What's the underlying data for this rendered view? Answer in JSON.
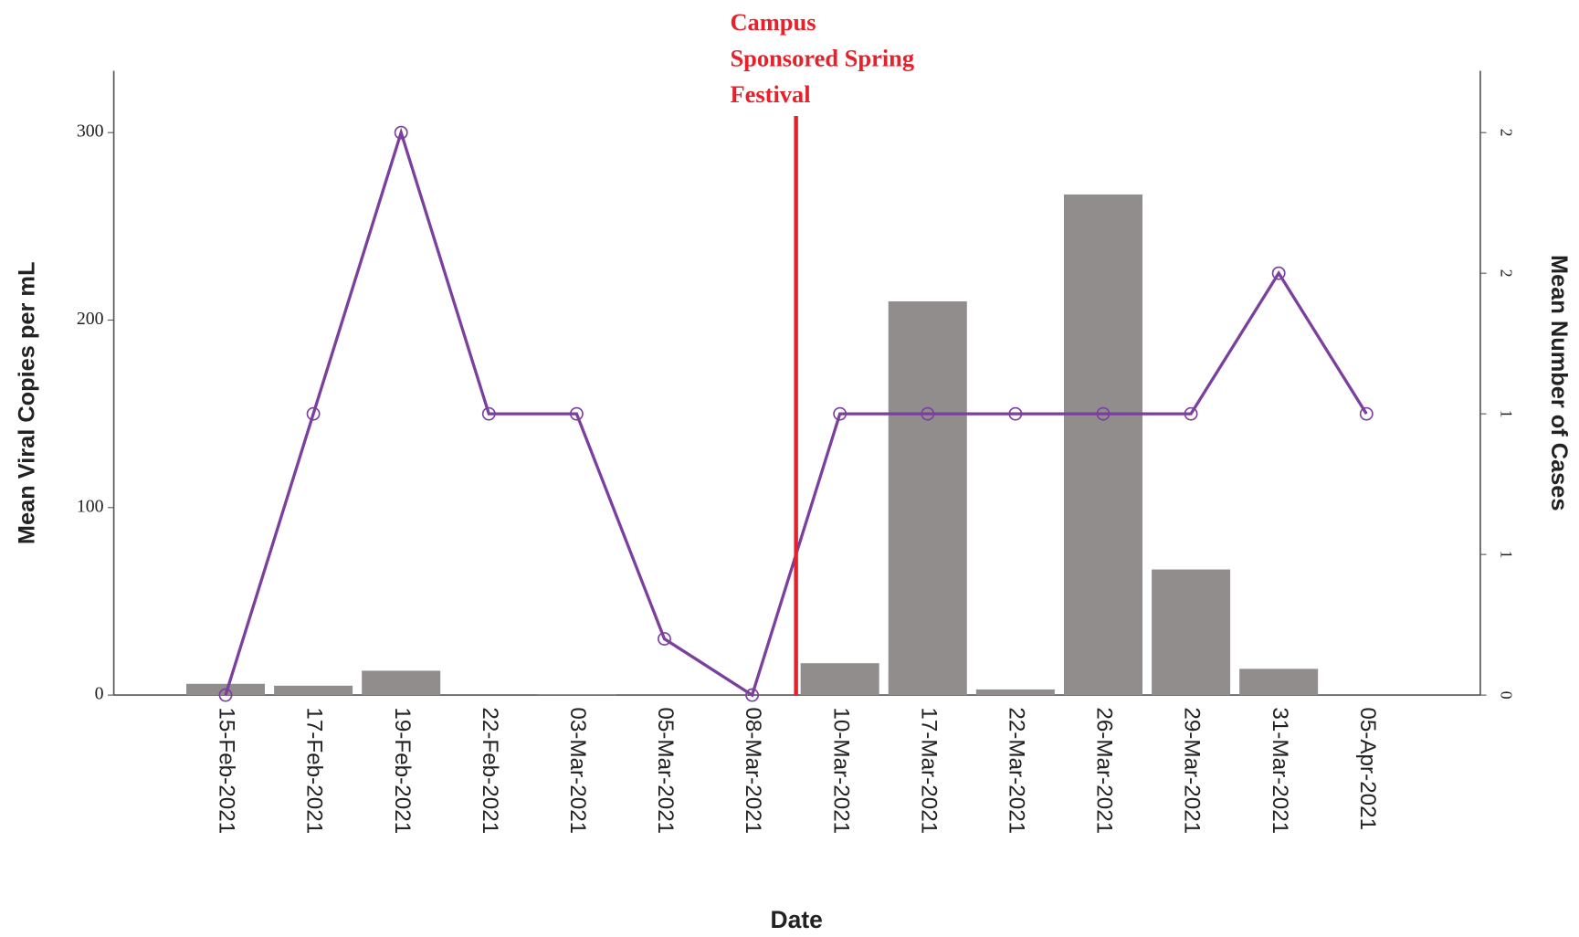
{
  "chart_data": {
    "type": "bar-line",
    "x_label": "Date",
    "y_label": "Mean Viral Copies per mL",
    "y2_label": "Mean Number of Cases",
    "annotation": {
      "lines": [
        "Campus",
        "Sponsored Spring",
        "Festival"
      ],
      "color": "#e8202a"
    },
    "categories": [
      "15-Feb-2021",
      "17-Feb-2021",
      "19-Feb-2021",
      "22-Feb-2021",
      "03-Mar-2021",
      "05-Mar-2021",
      "08-Mar-2021",
      "10-Mar-2021",
      "17-Mar-2021",
      "22-Mar-2021",
      "26-Mar-2021",
      "29-Mar-2021",
      "31-Mar-2021",
      "05-Apr-2021"
    ],
    "series": [
      {
        "type": "bar",
        "color": "#918d8c",
        "values": [
          6,
          5,
          13,
          0,
          0.5,
          0,
          0,
          17,
          210,
          3,
          267,
          67,
          14,
          0
        ]
      },
      {
        "type": "line",
        "axis": "y2",
        "color": "#7b3f9e",
        "values": [
          0,
          1,
          2,
          1,
          1,
          0.2,
          0,
          1,
          1,
          1,
          1,
          1,
          1.5,
          1
        ]
      }
    ],
    "ylim": [
      0,
      333
    ],
    "yticks": [
      0,
      100,
      200,
      300
    ],
    "y2lim": [
      0,
      2.22
    ],
    "y2ticks": [
      0,
      {
        "value": 0.5,
        "label": "1"
      },
      1,
      {
        "value": 1.5,
        "label": "2"
      },
      2
    ]
  }
}
